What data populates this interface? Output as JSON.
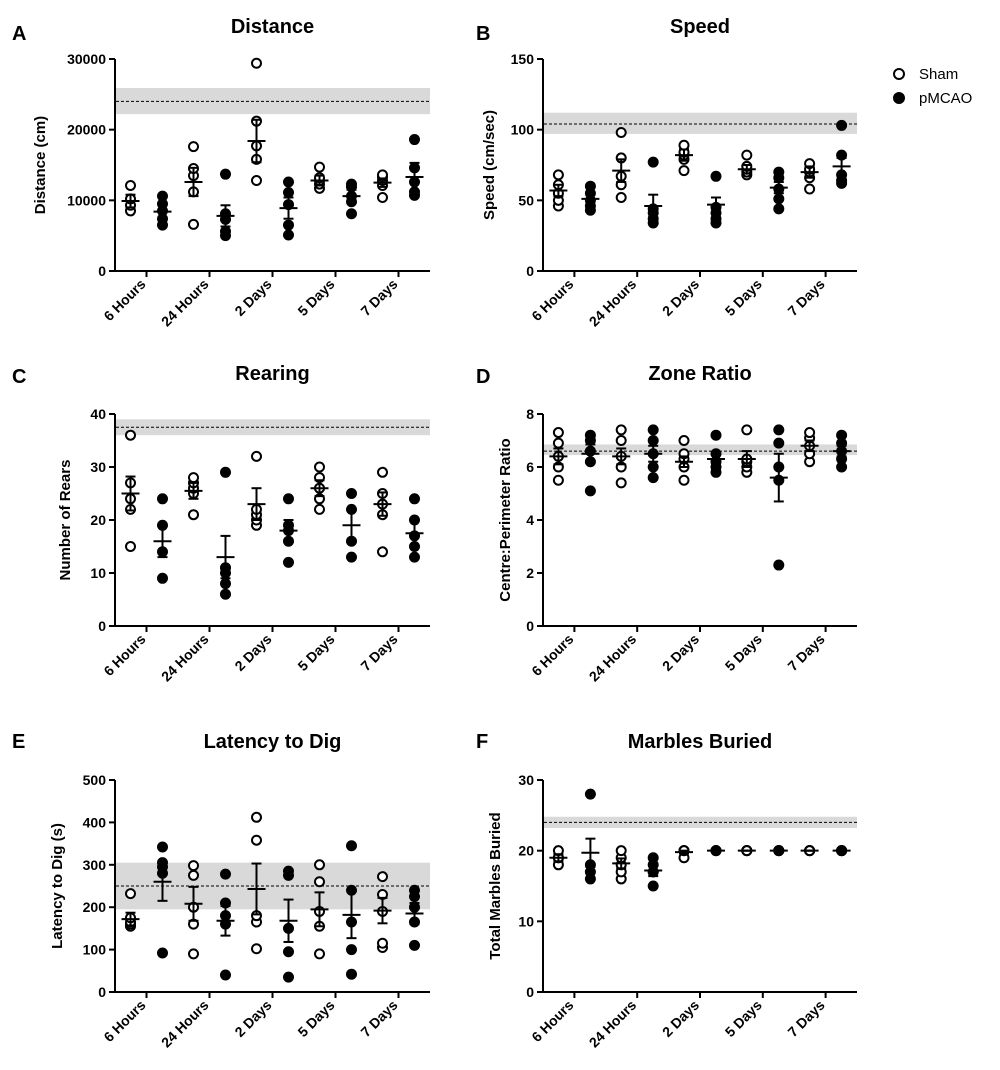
{
  "legend": {
    "placement": "top-right",
    "entries": [
      {
        "label": "Sham",
        "marker": "open-circle"
      },
      {
        "label": "pMCAO",
        "marker": "filled-circle"
      }
    ]
  },
  "colors": {
    "ink": "#000000",
    "reference_band": "#d9d9d9",
    "background": "#ffffff"
  },
  "chart_data": [
    {
      "panel": "A",
      "type": "scatter",
      "title": "Distance",
      "xlabel": "",
      "ylabel": "Distance (cm)",
      "ylim": [
        0,
        30000
      ],
      "yticks": [
        0,
        10000,
        20000,
        30000
      ],
      "yticklabels": [
        "0",
        "10000",
        "20000",
        "30000"
      ],
      "categories": [
        "6 Hours",
        "24 Hours",
        "2 Days",
        "5 Days",
        "7 Days"
      ],
      "reference": {
        "mean": 24000,
        "band": [
          22200,
          25900
        ]
      },
      "series": [
        {
          "name": "Sham",
          "marker": "open",
          "mean": [
            9900,
            12600,
            18400,
            12800,
            12500
          ],
          "sem": [
            900,
            2000,
            3000,
            700,
            600
          ],
          "points": [
            [
              8500,
              9300,
              10200,
              12100
            ],
            [
              6600,
              11200,
              13500,
              14500,
              17600
            ],
            [
              12800,
              15800,
              17700,
              21200,
              29400
            ],
            [
              11700,
              12300,
              12800,
              13200,
              14700
            ],
            [
              10400,
              12100,
              12800,
              13300,
              13600
            ]
          ]
        },
        {
          "name": "pMCAO",
          "marker": "filled",
          "mean": [
            8400,
            7800,
            8900,
            10600,
            13300
          ],
          "sem": [
            900,
            1500,
            1500,
            900,
            2000
          ],
          "points": [
            [
              6500,
              7400,
              8500,
              9500,
              10600
            ],
            [
              5000,
              5600,
              7300,
              8100,
              13700
            ],
            [
              5100,
              6500,
              9400,
              11100,
              12600
            ],
            [
              8100,
              9800,
              10600,
              11900,
              12300
            ],
            [
              10700,
              11200,
              12600,
              14600,
              18600
            ]
          ]
        }
      ]
    },
    {
      "panel": "B",
      "type": "scatter",
      "title": "Speed",
      "xlabel": "",
      "ylabel": "Speed (cm/sec)",
      "ylim": [
        0,
        150
      ],
      "yticks": [
        0,
        50,
        100,
        150
      ],
      "yticklabels": [
        "0",
        "50",
        "100",
        "150"
      ],
      "categories": [
        "6 Hours",
        "24 Hours",
        "2 Days",
        "5 Days",
        "7 Days"
      ],
      "reference": {
        "mean": 104,
        "band": [
          97,
          112
        ]
      },
      "series": [
        {
          "name": "Sham",
          "marker": "open",
          "mean": [
            57,
            71,
            82,
            72,
            70
          ],
          "sem": [
            4,
            8,
            4,
            3,
            4
          ],
          "points": [
            [
              46,
              50,
              55,
              61,
              68
            ],
            [
              52,
              61,
              67,
              80,
              98
            ],
            [
              71,
              79,
              82,
              84,
              89
            ],
            [
              68,
              70,
              72,
              74,
              82
            ],
            [
              58,
              66,
              70,
              72,
              76
            ]
          ]
        },
        {
          "name": "pMCAO",
          "marker": "filled",
          "mean": [
            51,
            46,
            47,
            59,
            74
          ],
          "sem": [
            4,
            8,
            5,
            4,
            6
          ],
          "points": [
            [
              43,
              46,
              50,
              55,
              60
            ],
            [
              34,
              37,
              41,
              44,
              77
            ],
            [
              34,
              37,
              41,
              45,
              67
            ],
            [
              44,
              51,
              58,
              66,
              70
            ],
            [
              62,
              64,
              68,
              82,
              103
            ]
          ]
        }
      ]
    },
    {
      "panel": "C",
      "type": "scatter",
      "title": "Rearing",
      "xlabel": "",
      "ylabel": "Number of Rears",
      "ylim": [
        0,
        40
      ],
      "yticks": [
        0,
        10,
        20,
        30,
        40
      ],
      "yticklabels": [
        "0",
        "10",
        "20",
        "30",
        "40"
      ],
      "categories": [
        "6 Hours",
        "24 Hours",
        "2 Days",
        "5 Days",
        "7 Days"
      ],
      "reference": {
        "mean": 37.5,
        "band": [
          36,
          39
        ]
      },
      "series": [
        {
          "name": "Sham",
          "marker": "open",
          "mean": [
            25,
            25.5,
            23,
            26,
            23
          ],
          "sem": [
            3.2,
            1.5,
            3,
            1.5,
            2.2
          ],
          "points": [
            [
              15,
              22,
              24,
              27,
              36
            ],
            [
              21,
              25,
              26,
              27,
              28
            ],
            [
              19,
              20,
              21,
              22,
              32
            ],
            [
              22,
              24,
              26,
              28,
              30
            ],
            [
              14,
              21,
              23,
              25,
              29
            ]
          ]
        },
        {
          "name": "pMCAO",
          "marker": "filled",
          "mean": [
            16,
            13,
            18,
            19,
            17.5
          ],
          "sem": [
            3,
            4,
            2,
            3,
            2.5
          ],
          "points": [
            [
              9,
              14,
              19,
              24
            ],
            [
              6,
              8,
              10,
              11,
              29
            ],
            [
              12,
              16,
              18,
              19,
              24
            ],
            [
              13,
              16,
              22,
              25
            ],
            [
              13,
              15,
              17,
              20,
              24
            ]
          ]
        }
      ]
    },
    {
      "panel": "D",
      "type": "scatter",
      "title": "Zone Ratio",
      "xlabel": "",
      "ylabel": "Centre:Perimeter Ratio",
      "ylim": [
        0,
        8
      ],
      "yticks": [
        0,
        2,
        4,
        6,
        8
      ],
      "yticklabels": [
        "0",
        "2",
        "4",
        "6",
        "8"
      ],
      "categories": [
        "6 Hours",
        "24 Hours",
        "2 Days",
        "5 Days",
        "7 Days"
      ],
      "reference": {
        "mean": 6.6,
        "band": [
          6.45,
          6.85
        ]
      },
      "series": [
        {
          "name": "Sham",
          "marker": "open",
          "mean": [
            6.4,
            6.4,
            6.2,
            6.3,
            6.8
          ],
          "sem": [
            0.3,
            0.3,
            0.2,
            0.3,
            0.2
          ],
          "points": [
            [
              5.5,
              6.0,
              6.4,
              6.9,
              7.3
            ],
            [
              5.4,
              6.0,
              6.4,
              7.0,
              7.4
            ],
            [
              5.5,
              6.0,
              6.3,
              6.5,
              7.0
            ],
            [
              5.8,
              6.0,
              6.2,
              6.3,
              7.4
            ],
            [
              6.2,
              6.5,
              6.8,
              7.1,
              7.3
            ]
          ]
        },
        {
          "name": "pMCAO",
          "marker": "filled",
          "mean": [
            6.5,
            6.5,
            6.3,
            5.6,
            6.6
          ],
          "sem": [
            0.35,
            0.3,
            0.2,
            0.9,
            0.2
          ],
          "points": [
            [
              5.1,
              6.2,
              6.6,
              7.0,
              7.2
            ],
            [
              5.6,
              6.0,
              6.5,
              7.0,
              7.4
            ],
            [
              5.8,
              6.0,
              6.2,
              6.5,
              7.2
            ],
            [
              2.3,
              5.5,
              6.0,
              6.9,
              7.4
            ],
            [
              6.0,
              6.3,
              6.6,
              6.9,
              7.2
            ]
          ]
        }
      ]
    },
    {
      "panel": "E",
      "type": "scatter",
      "title": "Latency to Dig",
      "xlabel": "",
      "ylabel": "Latency to Dig (s)",
      "ylim": [
        0,
        500
      ],
      "yticks": [
        0,
        100,
        200,
        300,
        400,
        500
      ],
      "yticklabels": [
        "0",
        "100",
        "200",
        "300",
        "400",
        "500"
      ],
      "categories": [
        "6 Hours",
        "24 Hours",
        "2 Days",
        "5 Days",
        "7 Days"
      ],
      "reference": {
        "mean": 250,
        "band": [
          195,
          305
        ]
      },
      "series": [
        {
          "name": "Sham",
          "marker": "open",
          "mean": [
            172,
            208,
            243,
            195,
            192
          ],
          "sem": [
            15,
            40,
            60,
            40,
            30
          ],
          "points": [
            [
              155,
              160,
              165,
              175,
              232
            ],
            [
              90,
              160,
              200,
              275,
              298
            ],
            [
              102,
              165,
              180,
              358,
              412
            ],
            [
              90,
              155,
              190,
              260,
              300
            ],
            [
              105,
              115,
              190,
              230,
              272
            ]
          ]
        },
        {
          "name": "pMCAO",
          "marker": "filled",
          "mean": [
            260,
            168,
            168,
            182,
            185
          ],
          "sem": [
            45,
            35,
            50,
            55,
            25
          ],
          "points": [
            [
              92,
              280,
              295,
              305,
              342
            ],
            [
              40,
              160,
              180,
              210,
              278
            ],
            [
              35,
              95,
              150,
              275,
              285
            ],
            [
              42,
              100,
              165,
              240,
              345
            ],
            [
              110,
              165,
              200,
              225,
              240
            ]
          ]
        }
      ]
    },
    {
      "panel": "F",
      "type": "scatter",
      "title": "Marbles Buried",
      "xlabel": "",
      "ylabel": "Total Marbles Buried",
      "ylim": [
        0,
        30
      ],
      "yticks": [
        0,
        10,
        20,
        30
      ],
      "yticklabels": [
        "0",
        "10",
        "20",
        "30"
      ],
      "categories": [
        "6 Hours",
        "24 Hours",
        "2 Days",
        "5 Days",
        "7 Days"
      ],
      "reference": {
        "mean": 24,
        "band": [
          23.2,
          24.8
        ]
      },
      "series": [
        {
          "name": "Sham",
          "marker": "open",
          "mean": [
            19,
            18.2,
            19.8,
            20,
            20
          ],
          "sem": [
            0.5,
            0.7,
            0.2,
            0,
            0
          ],
          "points": [
            [
              18,
              19,
              19,
              20
            ],
            [
              16,
              17,
              18,
              19,
              20
            ],
            [
              19,
              20,
              20,
              20
            ],
            [
              20,
              20,
              20,
              20,
              20
            ],
            [
              20,
              20,
              20,
              20,
              20
            ]
          ]
        },
        {
          "name": "pMCAO",
          "marker": "filled",
          "mean": [
            19.7,
            17.2,
            20,
            20,
            20
          ],
          "sem": [
            2,
            0.8,
            0,
            0,
            0
          ],
          "points": [
            [
              16,
              17,
              18,
              28
            ],
            [
              15,
              17,
              17,
              18,
              19
            ],
            [
              20,
              20,
              20,
              20
            ],
            [
              20,
              20,
              20,
              20,
              20
            ],
            [
              20,
              20,
              20,
              20,
              20
            ]
          ]
        }
      ]
    }
  ]
}
